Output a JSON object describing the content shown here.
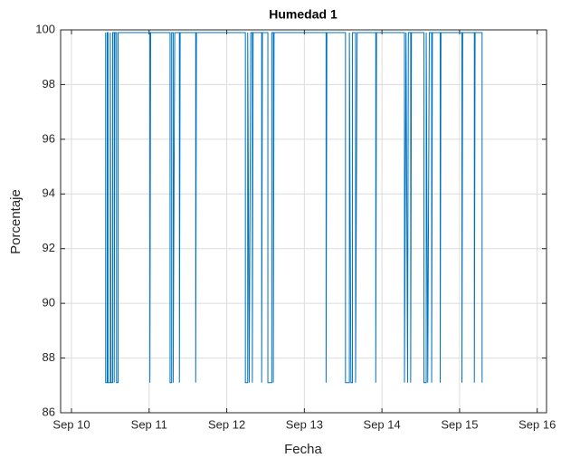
{
  "chart_data": {
    "type": "line",
    "title": "Humedad 1",
    "xlabel": "Fecha",
    "ylabel": "Porcentaje",
    "color": "#0072bd",
    "grid": true,
    "xlim": [
      9.86,
      16.12
    ],
    "xticks": [
      {
        "value": 10,
        "label": "Sep 10"
      },
      {
        "value": 11,
        "label": "Sep 11"
      },
      {
        "value": 12,
        "label": "Sep 12"
      },
      {
        "value": 13,
        "label": "Sep 13"
      },
      {
        "value": 14,
        "label": "Sep 14"
      },
      {
        "value": 15,
        "label": "Sep 15"
      },
      {
        "value": 16,
        "label": "Sep 16"
      }
    ],
    "ylim": [
      86,
      100
    ],
    "yticks": [
      86,
      88,
      90,
      92,
      94,
      96,
      98,
      100
    ],
    "x": [
      10.44,
      10.44,
      10.46,
      10.46,
      10.47,
      10.47,
      10.5,
      10.5,
      10.51,
      10.53,
      10.53,
      10.55,
      10.55,
      10.56,
      10.58,
      10.58,
      10.6,
      10.6,
      11.01,
      11.01,
      11.02,
      11.27,
      11.27,
      11.29,
      11.29,
      11.31,
      11.31,
      11.33,
      11.39,
      11.39,
      11.4,
      11.6,
      11.6,
      11.61,
      12.24,
      12.24,
      12.27,
      12.27,
      12.29,
      12.31,
      12.33,
      12.33,
      12.34,
      12.45,
      12.45,
      12.46,
      12.53,
      12.53,
      12.58,
      12.58,
      12.6,
      12.6,
      12.61,
      13.28,
      13.28,
      13.29,
      13.53,
      13.53,
      13.58,
      13.58,
      13.6,
      13.62,
      13.62,
      13.66,
      13.66,
      13.68,
      13.92,
      13.92,
      13.93,
      14.29,
      14.29,
      14.31,
      14.33,
      14.34,
      14.37,
      14.37,
      14.38,
      14.54,
      14.54,
      14.57,
      14.57,
      14.59,
      14.61,
      14.64,
      14.64,
      14.65,
      14.75,
      14.75,
      14.76,
      15.03,
      15.03,
      15.04,
      15.19,
      15.19,
      15.2,
      15.29,
      15.29
    ],
    "values": [
      99.9,
      87.1,
      87.1,
      99.9,
      99.9,
      87.1,
      87.1,
      99.9,
      87.1,
      87.1,
      99.9,
      99.9,
      87.1,
      99.9,
      99.9,
      87.1,
      87.1,
      99.9,
      99.9,
      87.1,
      99.9,
      99.9,
      87.1,
      87.1,
      99.9,
      99.9,
      87.1,
      99.9,
      99.9,
      87.1,
      99.9,
      99.9,
      87.1,
      99.9,
      99.9,
      87.1,
      87.1,
      99.9,
      87.1,
      99.9,
      99.9,
      87.1,
      99.9,
      99.9,
      87.1,
      99.9,
      99.9,
      87.1,
      87.1,
      99.9,
      99.9,
      87.1,
      99.9,
      99.9,
      87.1,
      99.9,
      99.9,
      87.1,
      87.1,
      99.9,
      87.1,
      87.1,
      99.9,
      99.9,
      87.1,
      99.9,
      99.9,
      87.1,
      99.9,
      99.9,
      87.1,
      99.9,
      87.1,
      99.9,
      99.9,
      87.1,
      99.9,
      99.9,
      87.1,
      87.1,
      99.9,
      87.1,
      99.9,
      99.9,
      87.1,
      99.9,
      99.9,
      87.1,
      99.9,
      99.9,
      87.1,
      99.9,
      99.9,
      87.1,
      99.9,
      99.9,
      87.1
    ]
  }
}
